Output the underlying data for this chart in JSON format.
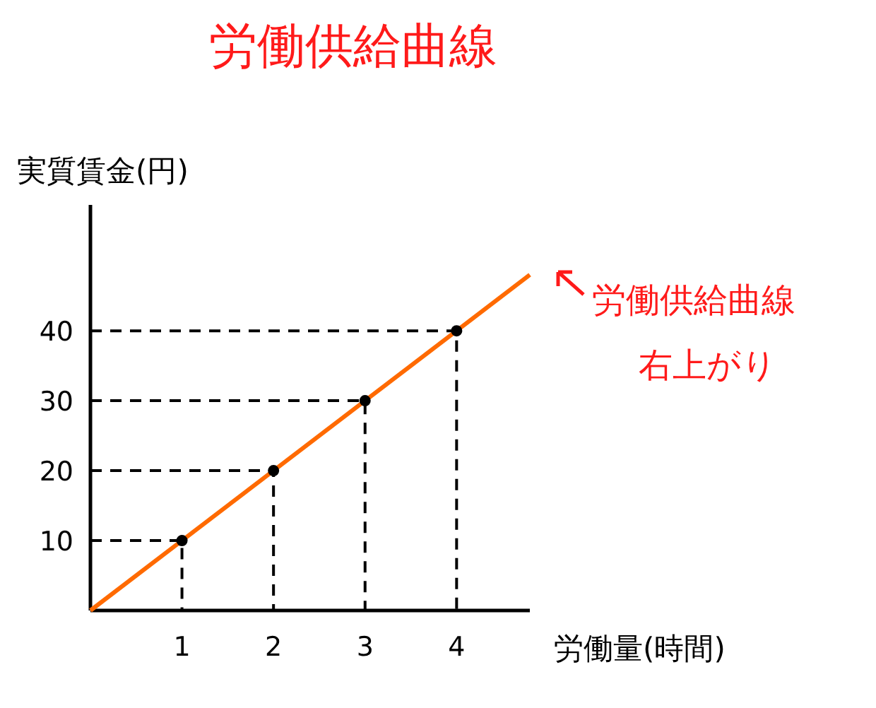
{
  "chart_data": {
    "type": "line",
    "title": "労働供給曲線",
    "xlabel": "労働量(時間)",
    "ylabel": "実質賃金(円)",
    "xlim": [
      0,
      4.8
    ],
    "ylim": [
      0,
      58
    ],
    "xticks": [
      1,
      2,
      3,
      4
    ],
    "yticks": [
      10,
      20,
      30,
      40
    ],
    "series": [
      {
        "color": "#000000",
        "line_style": "dashed",
        "x": [
          0,
          1,
          1
        ],
        "values": [
          10,
          10,
          0
        ]
      },
      {
        "color": "#000000",
        "line_style": "dashed",
        "x": [
          0,
          2,
          2
        ],
        "values": [
          20,
          20,
          0
        ]
      },
      {
        "color": "#000000",
        "line_style": "dashed",
        "x": [
          0,
          3,
          3
        ],
        "values": [
          30,
          30,
          0
        ]
      },
      {
        "color": "#000000",
        "line_style": "dashed",
        "x": [
          0,
          4,
          4
        ],
        "values": [
          40,
          40,
          0
        ]
      },
      {
        "color": "#ff6a00",
        "x": [
          0,
          4.8
        ],
        "values": [
          0,
          48
        ]
      },
      {
        "type": "scatter",
        "marker": "circle",
        "color": "#000000",
        "x": [
          1,
          2,
          3,
          4
        ],
        "values": [
          10,
          20,
          30,
          40
        ]
      }
    ],
    "annotations": [
      {
        "text": "労働供給曲線",
        "x": 4.8,
        "y": 48
      },
      "右上がり"
    ]
  }
}
